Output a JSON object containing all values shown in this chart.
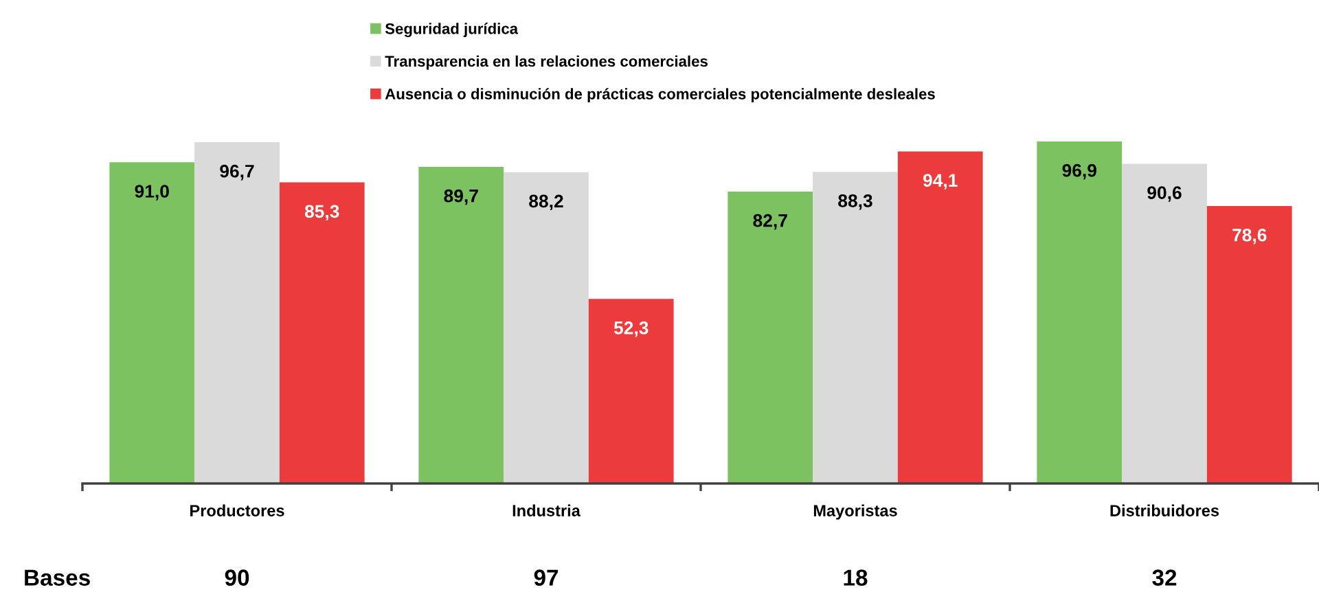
{
  "chart_data": {
    "type": "bar",
    "categories": [
      "Productores",
      "Industria",
      "Mayoristas",
      "Distribuidores"
    ],
    "series": [
      {
        "name": "Seguridad jurídica",
        "color": "#7cc261",
        "values": [
          91.0,
          89.7,
          82.7,
          96.9
        ],
        "value_labels": [
          "91,0",
          "89,7",
          "82,7",
          "96,9"
        ]
      },
      {
        "name": "Transparencia en las relaciones comerciales",
        "color": "#dadada",
        "values": [
          96.7,
          88.2,
          88.3,
          90.6
        ],
        "value_labels": [
          "96,7",
          "88,2",
          "88,3",
          "90,6"
        ]
      },
      {
        "name": "Ausencia o disminución de prácticas comerciales potencialmente desleales",
        "color": "#ec3b3d",
        "values": [
          85.3,
          52.3,
          94.1,
          78.6
        ],
        "value_labels": [
          "85,3",
          "52,3",
          "94,1",
          "78,6"
        ]
      }
    ],
    "legend": "top",
    "tick_labels": "x",
    "annotations": [
      "Bases",
      "90",
      "97",
      "18",
      "32"
    ]
  }
}
